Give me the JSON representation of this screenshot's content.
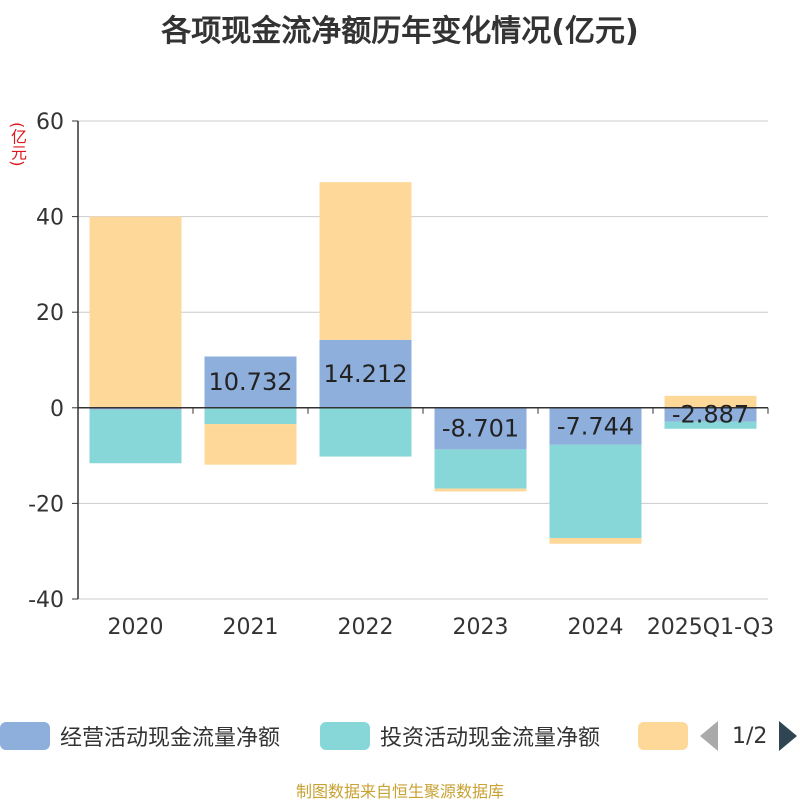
{
  "chart_data": {
    "type": "bar",
    "stacked": true,
    "title": "各项现金流净额历年变化情况(亿元)",
    "ylabel": "(亿元)",
    "categories": [
      "2020",
      "2021",
      "2022",
      "2023",
      "2024",
      "2025Q1-Q3"
    ],
    "ylim": [
      -40,
      60
    ],
    "yticks": [
      60,
      40,
      20,
      0,
      -20,
      -40
    ],
    "series": [
      {
        "name": "经营活动现金流量净额",
        "color": "#8eaedc",
        "values": [
          -0.4,
          10.732,
          14.212,
          -8.701,
          -7.744,
          -2.887
        ],
        "labels": [
          "",
          "10.732",
          "14.212",
          "-8.701",
          "-7.744",
          "-2.887"
        ]
      },
      {
        "name": "投资活动现金流量净额",
        "color": "#87d6d8",
        "values": [
          -11.2,
          -3.4,
          -10.2,
          -8.2,
          -19.5,
          -1.5
        ]
      },
      {
        "name": "",
        "color": "#fed898",
        "values": [
          40,
          -8.5,
          33,
          -0.6,
          -1.2,
          2.5
        ]
      }
    ],
    "legend_page": "1/2"
  },
  "source": "制图数据来自恒生聚源数据库"
}
